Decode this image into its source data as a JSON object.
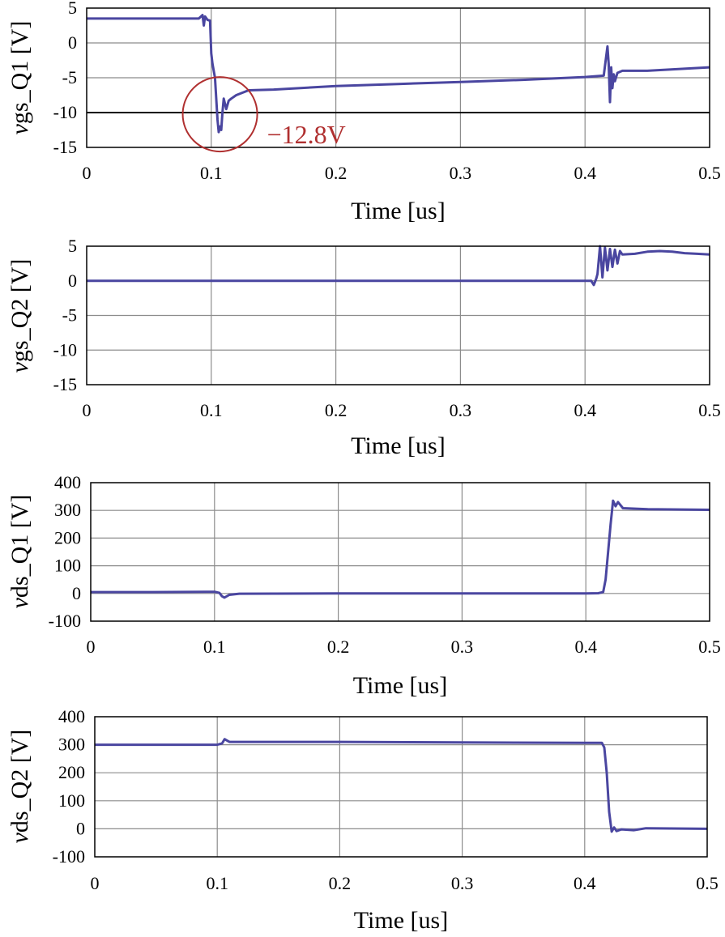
{
  "chart_data": [
    {
      "type": "line",
      "ylabel_italic": "v",
      "ylabel_rest": "gs_Q1 [V]",
      "xlabel": "Time [us]",
      "xlim": [
        0,
        0.5
      ],
      "ylim": [
        -15,
        5
      ],
      "xticks": [
        "0",
        "0.1",
        "0.2",
        "0.3",
        "0.4",
        "0.5"
      ],
      "yticks": [
        "5",
        "0",
        "-5",
        "-10",
        "-15"
      ],
      "grid": true,
      "reference_line": -10,
      "annotation": {
        "text": "−12.8V",
        "x": 0.107,
        "y": -12.8
      },
      "series": [
        {
          "color": "#4a46a0",
          "x": [
            0,
            0.03,
            0.06,
            0.09,
            0.093,
            0.094,
            0.095,
            0.097,
            0.099,
            0.1,
            0.101,
            0.103,
            0.105,
            0.106,
            0.107,
            0.108,
            0.109,
            0.11,
            0.112,
            0.114,
            0.116,
            0.12,
            0.13,
            0.15,
            0.2,
            0.25,
            0.3,
            0.35,
            0.4,
            0.415,
            0.418,
            0.419,
            0.42,
            0.421,
            0.422,
            0.423,
            0.424,
            0.426,
            0.43,
            0.45,
            0.5
          ],
          "y": [
            3.5,
            3.5,
            3.5,
            3.5,
            4.0,
            2.5,
            3.8,
            3.3,
            3.2,
            -1.5,
            -3,
            -5,
            -11,
            -12.8,
            -12,
            -12.5,
            -10,
            -8,
            -9.5,
            -8.3,
            -8,
            -7.5,
            -6.8,
            -6.7,
            -6.2,
            -5.9,
            -5.6,
            -5.3,
            -4.9,
            -4.7,
            -0.5,
            -3,
            -8.5,
            -3.5,
            -6.5,
            -4.5,
            -5.5,
            -4.3,
            -4.0,
            -4.0,
            -3.5
          ]
        }
      ]
    },
    {
      "type": "line",
      "ylabel_italic": "v",
      "ylabel_rest": "gs_Q2 [V]",
      "xlabel": "Time [us]",
      "xlim": [
        0,
        0.5
      ],
      "ylim": [
        -15,
        5
      ],
      "xticks": [
        "0",
        "0.1",
        "0.2",
        "0.3",
        "0.4",
        "0.5"
      ],
      "yticks": [
        "5",
        "0",
        "-5",
        "-10",
        "-15"
      ],
      "grid": true,
      "series": [
        {
          "color": "#4a46a0",
          "x": [
            0,
            0.1,
            0.2,
            0.3,
            0.4,
            0.405,
            0.407,
            0.409,
            0.41,
            0.412,
            0.414,
            0.416,
            0.418,
            0.42,
            0.422,
            0.424,
            0.426,
            0.428,
            0.43,
            0.44,
            0.45,
            0.46,
            0.47,
            0.48,
            0.49,
            0.5
          ],
          "y": [
            0,
            0,
            0,
            0,
            0,
            0,
            -0.6,
            0.3,
            1,
            5,
            0.5,
            4.8,
            1.5,
            4.6,
            2,
            4.5,
            2.5,
            4.3,
            3.8,
            3.9,
            4.2,
            4.3,
            4.2,
            4.0,
            3.9,
            3.8
          ]
        }
      ]
    },
    {
      "type": "line",
      "ylabel_italic": "v",
      "ylabel_rest": "ds_Q1 [V]",
      "xlabel": "Time [us]",
      "xlim": [
        0,
        0.5
      ],
      "ylim": [
        -100,
        400
      ],
      "xticks": [
        "0",
        "0.1",
        "0.2",
        "0.3",
        "0.4",
        "0.5"
      ],
      "yticks": [
        "400",
        "300",
        "200",
        "100",
        "0",
        "-100"
      ],
      "grid": true,
      "series": [
        {
          "color": "#4a46a0",
          "x": [
            0,
            0.05,
            0.1,
            0.104,
            0.106,
            0.108,
            0.112,
            0.12,
            0.2,
            0.3,
            0.4,
            0.41,
            0.414,
            0.416,
            0.418,
            0.42,
            0.422,
            0.424,
            0.426,
            0.43,
            0.45,
            0.5
          ],
          "y": [
            5,
            5,
            6,
            2,
            -10,
            -15,
            -5,
            -1,
            0,
            0,
            0,
            1,
            5,
            50,
            150,
            250,
            335,
            315,
            330,
            308,
            304,
            302
          ]
        }
      ]
    },
    {
      "type": "line",
      "ylabel_italic": "v",
      "ylabel_rest": "ds_Q2 [V]",
      "xlabel": "Time [us]",
      "xlim": [
        0,
        0.5
      ],
      "ylim": [
        -100,
        400
      ],
      "xticks": [
        "0",
        "0.1",
        "0.2",
        "0.3",
        "0.4",
        "0.5"
      ],
      "yticks": [
        "400",
        "300",
        "200",
        "100",
        "0",
        "-100"
      ],
      "grid": true,
      "series": [
        {
          "color": "#4a46a0",
          "x": [
            0,
            0.05,
            0.1,
            0.104,
            0.106,
            0.108,
            0.11,
            0.115,
            0.2,
            0.3,
            0.4,
            0.414,
            0.416,
            0.418,
            0.42,
            0.422,
            0.424,
            0.426,
            0.43,
            0.44,
            0.45,
            0.5
          ],
          "y": [
            300,
            300,
            300,
            305,
            320,
            315,
            310,
            310,
            310,
            308,
            307,
            307,
            290,
            200,
            60,
            -10,
            5,
            -8,
            -2,
            -5,
            2,
            0
          ]
        }
      ]
    }
  ]
}
